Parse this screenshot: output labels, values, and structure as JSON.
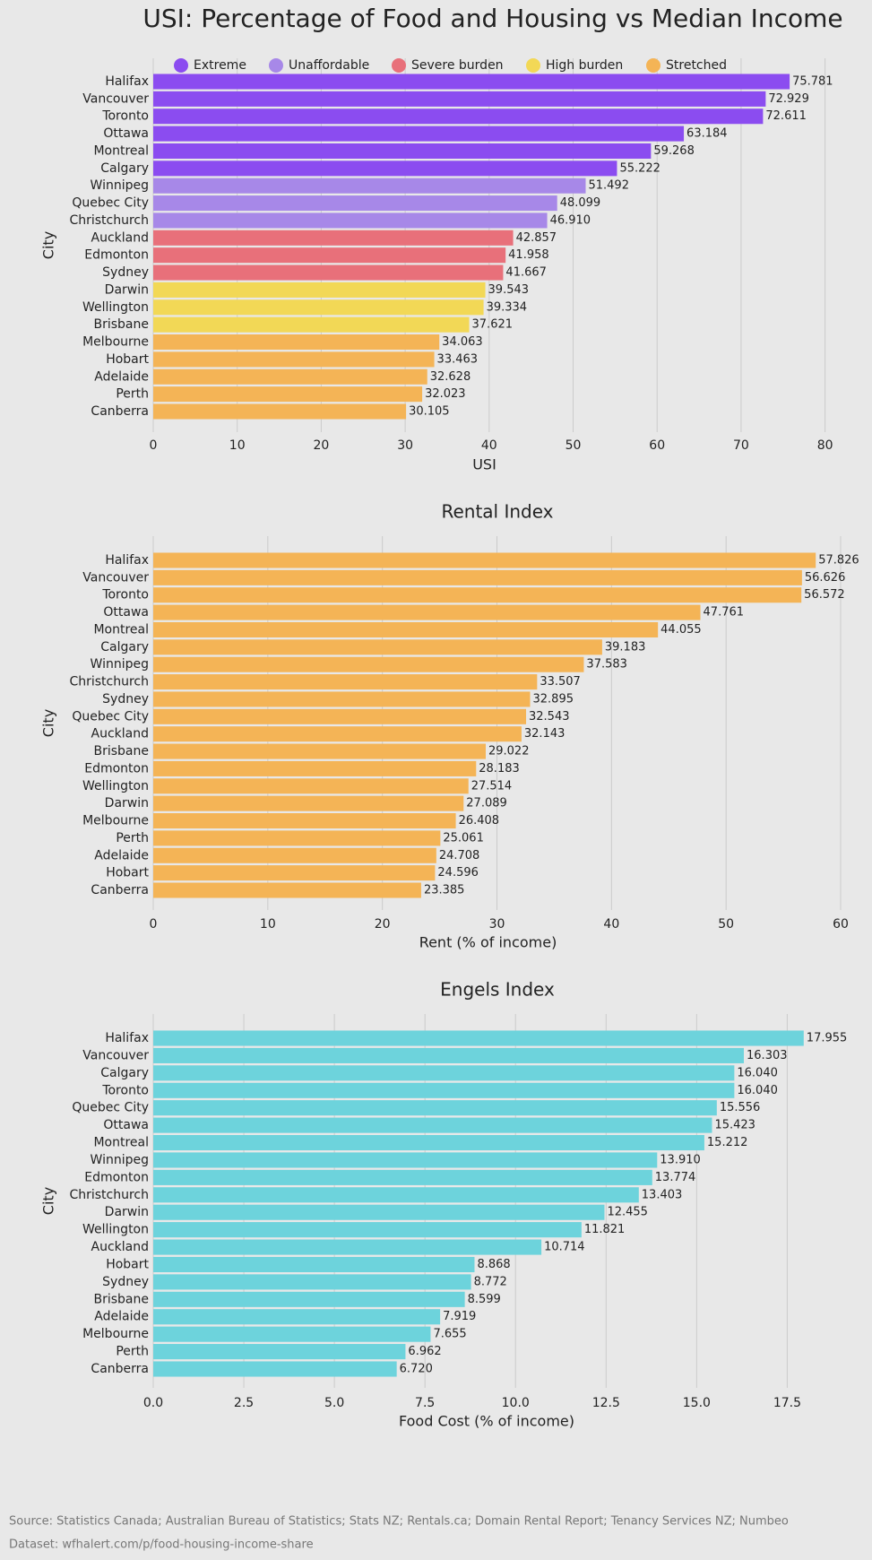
{
  "chart_data": [
    {
      "type": "bar",
      "orientation": "horizontal",
      "title": "USI: Percentage of Food and Housing vs Median Income",
      "xlabel": "USI",
      "ylabel": "City",
      "categories": [
        "Halifax",
        "Vancouver",
        "Toronto",
        "Ottawa",
        "Montreal",
        "Calgary",
        "Winnipeg",
        "Quebec City",
        "Christchurch",
        "Auckland",
        "Edmonton",
        "Sydney",
        "Darwin",
        "Wellington",
        "Brisbane",
        "Melbourne",
        "Hobart",
        "Adelaide",
        "Perth",
        "Canberra"
      ],
      "series": [
        {
          "name": "Extreme",
          "color": "#8b4cf0",
          "values": [
            75.781,
            72.929,
            72.611,
            63.184,
            59.268,
            55.222,
            null,
            null,
            null,
            null,
            null,
            null,
            null,
            null,
            null,
            null,
            null,
            null,
            null,
            null
          ]
        },
        {
          "name": "Unaffordable",
          "color": "#a788e8",
          "values": [
            null,
            null,
            null,
            null,
            null,
            null,
            51.492,
            48.099,
            46.91,
            null,
            null,
            null,
            null,
            null,
            null,
            null,
            null,
            null,
            null,
            null
          ],
          "value_labels": [
            null,
            null,
            null,
            null,
            null,
            null,
            "51.492",
            "48.099",
            "46.910",
            null,
            null,
            null,
            null,
            null,
            null,
            null,
            null,
            null,
            null,
            null
          ]
        },
        {
          "name": "Severe burden",
          "color": "#e8707a",
          "values": [
            null,
            null,
            null,
            null,
            null,
            null,
            null,
            null,
            null,
            42.857,
            41.958,
            41.667,
            null,
            null,
            null,
            null,
            null,
            null,
            null,
            null
          ]
        },
        {
          "name": "High burden",
          "color": "#f2d856",
          "values": [
            null,
            null,
            null,
            null,
            null,
            null,
            null,
            null,
            null,
            null,
            null,
            null,
            39.543,
            39.334,
            37.621,
            null,
            null,
            null,
            null,
            null
          ]
        },
        {
          "name": "Stretched",
          "color": "#f4b456",
          "values": [
            null,
            null,
            null,
            null,
            null,
            null,
            null,
            null,
            null,
            null,
            null,
            null,
            null,
            null,
            null,
            34.063,
            33.463,
            32.628,
            32.023,
            30.105
          ]
        }
      ],
      "xlim": [
        0,
        81
      ],
      "xticks": [
        0,
        10,
        20,
        30,
        40,
        50,
        60,
        70,
        80
      ],
      "grid": true,
      "legend": "top"
    },
    {
      "type": "bar",
      "orientation": "horizontal",
      "title": "Rental Index",
      "xlabel": "Rent (% of income)",
      "ylabel": "City",
      "categories": [
        "Halifax",
        "Vancouver",
        "Toronto",
        "Ottawa",
        "Montreal",
        "Calgary",
        "Winnipeg",
        "Christchurch",
        "Sydney",
        "Quebec City",
        "Auckland",
        "Brisbane",
        "Edmonton",
        "Wellington",
        "Darwin",
        "Melbourne",
        "Perth",
        "Adelaide",
        "Hobart",
        "Canberra"
      ],
      "values": [
        57.826,
        56.626,
        56.572,
        47.761,
        44.055,
        39.183,
        37.583,
        33.507,
        32.895,
        32.543,
        32.143,
        29.022,
        28.183,
        27.514,
        27.089,
        26.408,
        25.061,
        24.708,
        24.596,
        23.385
      ],
      "color": "#f4b456",
      "xlim": [
        0,
        60
      ],
      "xticks": [
        0,
        10,
        20,
        30,
        40,
        50,
        60
      ],
      "grid": true
    },
    {
      "type": "bar",
      "orientation": "horizontal",
      "title": "Engels Index",
      "xlabel": "Food Cost (% of income)",
      "ylabel": "City",
      "categories": [
        "Halifax",
        "Vancouver",
        "Calgary",
        "Toronto",
        "Quebec City",
        "Ottawa",
        "Montreal",
        "Winnipeg",
        "Edmonton",
        "Christchurch",
        "Darwin",
        "Wellington",
        "Auckland",
        "Hobart",
        "Sydney",
        "Brisbane",
        "Adelaide",
        "Melbourne",
        "Perth",
        "Canberra"
      ],
      "values": [
        17.955,
        16.303,
        16.04,
        16.04,
        15.556,
        15.423,
        15.212,
        13.91,
        13.774,
        13.403,
        12.455,
        11.821,
        10.714,
        8.868,
        8.772,
        8.599,
        7.919,
        7.655,
        6.962,
        6.72
      ],
      "value_labels": [
        "17.955",
        "16.303",
        "16.040",
        "16.040",
        "15.556",
        "15.423",
        "15.212",
        "13.910",
        "13.774",
        "13.403",
        "12.455",
        "11.821",
        "10.714",
        "8.868",
        "8.772",
        "8.599",
        "7.919",
        "7.655",
        "6.962",
        "6.720"
      ],
      "color": "#6dd3dc",
      "xlim": [
        0,
        18.9
      ],
      "xticks": [
        {
          "value": 0,
          "label": "0.0"
        },
        2.5,
        {
          "value": 5,
          "label": "5.0"
        },
        7.5,
        {
          "value": 10,
          "label": "10.0"
        },
        12.5,
        {
          "value": 15,
          "label": "15.0"
        },
        17.5
      ],
      "grid": true
    }
  ],
  "footer": {
    "source": "Source: Statistics Canada; Australian Bureau of Statistics; Stats NZ; Rentals.ca; Domain Rental Report; Tenancy Services NZ; Numbeo",
    "dataset": "Dataset: wfhalert.com/p/food-housing-income-share"
  }
}
